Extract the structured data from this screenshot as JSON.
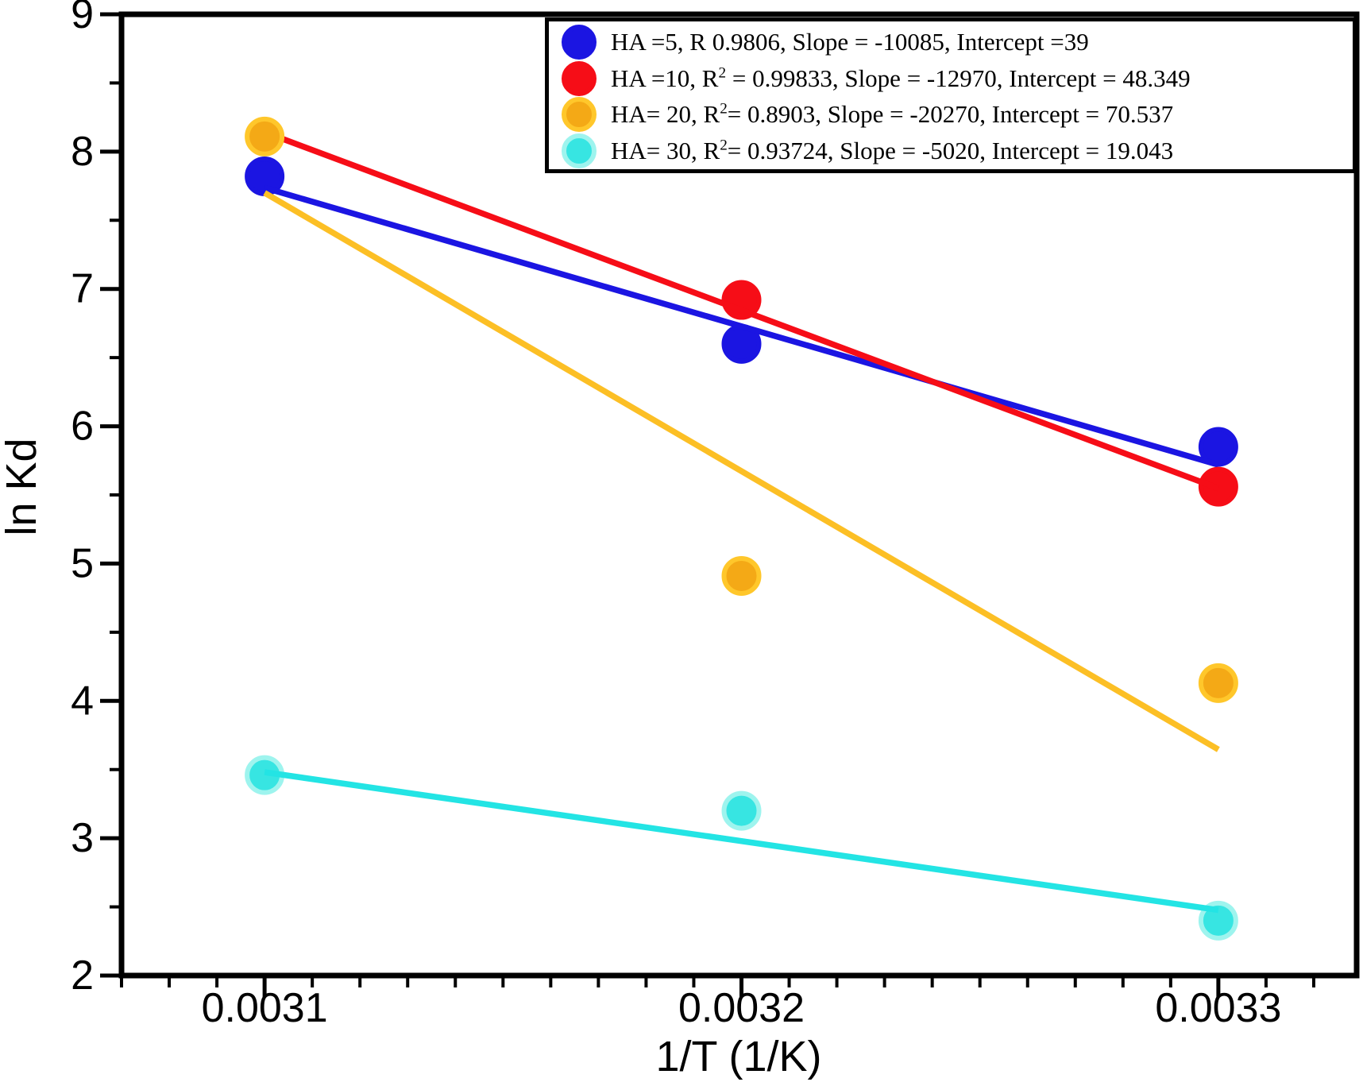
{
  "chart_data": {
    "type": "scatter",
    "title": "",
    "xlabel": "1/T (1/K)",
    "ylabel": "ln Kd",
    "grid": false,
    "legend_position": "top-right",
    "xlim": [
      0.00307,
      0.003329
    ],
    "ylim": [
      2,
      9
    ],
    "x_major_ticks": [
      {
        "value": 0.0031,
        "label": "0.0031"
      },
      {
        "value": 0.0032,
        "label": "0.0032"
      },
      {
        "value": 0.0033,
        "label": "0.0033"
      }
    ],
    "x_minor_step": 1e-05,
    "y_major_ticks": [
      {
        "value": 2,
        "label": "2"
      },
      {
        "value": 3,
        "label": "3"
      },
      {
        "value": 4,
        "label": "4"
      },
      {
        "value": 5,
        "label": "5"
      },
      {
        "value": 6,
        "label": "6"
      },
      {
        "value": 7,
        "label": "7"
      },
      {
        "value": 8,
        "label": "8"
      },
      {
        "value": 9,
        "label": "9"
      }
    ],
    "y_minor_step": 0.5,
    "series": [
      {
        "id": "HA-5",
        "legend": {
          "prefix": "HA =5, R 0.9806, Slope = -10085, Intercept =39",
          "sup": "",
          "suffix": ""
        },
        "line_color": "#1b15e2",
        "marker_fill": "#1b15e2",
        "marker_ring": "#1b15e2",
        "points": [
          [
            0.0031,
            7.82
          ],
          [
            0.0032,
            6.6
          ],
          [
            0.0033,
            5.85
          ]
        ],
        "fit": {
          "slope": -10085,
          "intercept": 39,
          "r": 0.9806,
          "x_range": [
            0.0031,
            0.0033
          ]
        }
      },
      {
        "id": "HA-10",
        "legend": {
          "prefix": "HA =10, R",
          "sup": "2",
          "suffix": " = 0.99833, Slope = -12970, Intercept = 48.349"
        },
        "line_color": "#f60d17",
        "marker_fill": "#f60d17",
        "marker_ring": "#f60d17",
        "points": [
          [
            0.0032,
            6.92
          ],
          [
            0.0033,
            5.56
          ]
        ],
        "fit": {
          "slope": -12970,
          "intercept": 48.349,
          "r2": 0.99833,
          "x_range": [
            0.0031,
            0.0033
          ]
        }
      },
      {
        "id": "HA-20",
        "legend": {
          "prefix": "HA= 20, R",
          "sup": "2",
          "suffix": "= 0.8903, Slope = -20270, Intercept = 70.537"
        },
        "line_color": "#fcbf25",
        "marker_fill": "#f4a916",
        "marker_ring": "#ffc72b",
        "points": [
          [
            0.0031,
            8.11
          ],
          [
            0.0032,
            4.91
          ],
          [
            0.0033,
            4.13
          ]
        ],
        "fit": {
          "slope": -20270,
          "intercept": 70.537,
          "r2": 0.8903,
          "x_range": [
            0.0031,
            0.0033
          ]
        }
      },
      {
        "id": "HA-30",
        "legend": {
          "prefix": "HA= 30, R",
          "sup": "2",
          "suffix": "= 0.93724, Slope = -5020, Intercept = 19.043"
        },
        "line_color": "#23e4e4",
        "marker_fill": "#37e5e2",
        "marker_ring": "#9ef4ee",
        "points": [
          [
            0.0031,
            3.46
          ],
          [
            0.0032,
            3.2
          ],
          [
            0.0033,
            2.4
          ]
        ],
        "fit": {
          "slope": -5020,
          "intercept": 19.043,
          "r2": 0.93724,
          "x_range": [
            0.0031,
            0.0033
          ]
        }
      }
    ]
  }
}
